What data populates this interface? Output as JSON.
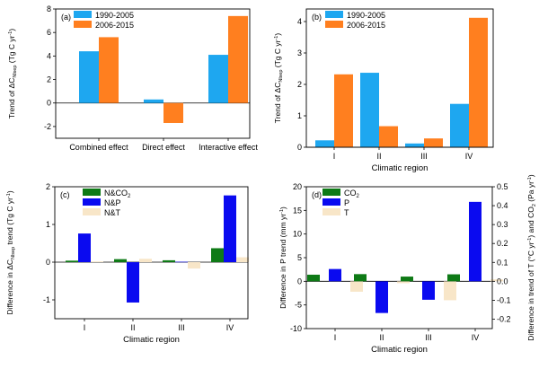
{
  "chart_data": [
    {
      "type": "bar",
      "panel_label": "(a)",
      "ylabel": "Trend of ΔC_Nlsep (Tg C yr⁻¹)",
      "ylabel_parts": {
        "pre": "Trend of ΔC",
        "sub": "Nlsep",
        "post": " (Tg C yr",
        "sup": "-1",
        "end": ")"
      },
      "categories": [
        "Combined effect",
        "Direct effect",
        "Interactive effect"
      ],
      "ylim": [
        -3,
        8
      ],
      "yticks": [
        -2,
        0,
        2,
        4,
        6,
        8
      ],
      "ytick_labels": [
        "-2",
        "0",
        "2",
        "4",
        "6",
        "8"
      ],
      "series": [
        {
          "name": "1990-2005",
          "color": "#1ea7f0",
          "values": [
            4.4,
            0.3,
            4.1
          ]
        },
        {
          "name": "2006-2015",
          "color": "#ff7f1f",
          "values": [
            5.6,
            -1.7,
            7.4
          ]
        }
      ],
      "legend": "top-left"
    },
    {
      "type": "bar",
      "panel_label": "(b)",
      "xlabel": "Climatic region",
      "ylabel": "Trend of ΔC_Nlsep (Tg C yr⁻¹)",
      "ylabel_parts": {
        "pre": "Trend of ΔC",
        "sub": "Nlsep",
        "post": " (Tg C yr",
        "sup": "-1",
        "end": ")"
      },
      "categories": [
        "I",
        "II",
        "III",
        "IV"
      ],
      "ylim": [
        0,
        4.4
      ],
      "yticks": [
        0,
        1,
        2,
        3,
        4
      ],
      "ytick_labels": [
        "0",
        "1",
        "2",
        "3",
        "4"
      ],
      "series": [
        {
          "name": "1990-2005",
          "color": "#1ea7f0",
          "values": [
            0.22,
            2.37,
            0.12,
            1.38
          ]
        },
        {
          "name": "2006-2015",
          "color": "#ff7f1f",
          "values": [
            2.32,
            0.67,
            0.28,
            4.12
          ]
        }
      ],
      "legend": "top-left"
    },
    {
      "type": "bar",
      "panel_label": "(c)",
      "xlabel": "Climatic region",
      "ylabel": "Difference in ΔC_Nlsep trend (Tg C yr⁻¹)",
      "ylabel_parts": {
        "pre": "Difference in ΔC",
        "sub": "Nlsep",
        "post": " trend (Tg C yr",
        "sup": "-1",
        "end": ")"
      },
      "categories": [
        "I",
        "II",
        "III",
        "IV"
      ],
      "ylim": [
        -1.5,
        2
      ],
      "yticks": [
        -1,
        0,
        1,
        2
      ],
      "ytick_labels": [
        "-1",
        "0",
        "1",
        "2"
      ],
      "series": [
        {
          "name": "N&CO2",
          "label_parts": {
            "pre": "N&CO",
            "sub": "2"
          },
          "color": "#0e7a16",
          "values": [
            0.04,
            0.08,
            0.05,
            0.37
          ]
        },
        {
          "name": "N&P",
          "color": "#0a0af0",
          "values": [
            0.76,
            -1.07,
            0.01,
            1.77
          ]
        },
        {
          "name": "N&T",
          "color": "#f8e6c8",
          "values": [
            0.02,
            0.09,
            -0.17,
            0.13
          ]
        }
      ],
      "legend": "top-left"
    },
    {
      "type": "bar",
      "panel_label": "(d)",
      "xlabel": "Climatic region",
      "ylabel": "Difference in P trend (mm yr⁻¹)",
      "ylabel_parts": {
        "pre": "Difference in P trend (mm yr",
        "sup": "-1",
        "end": ")"
      },
      "y2label": "Difference in trend of T (°C yr⁻¹) and CO₂ (Pa yr⁻¹)",
      "y2label_parts": {
        "pre": "Difference in trend of T (°C yr",
        "sup": "-1",
        "mid": ") and CO",
        "sub": "2",
        "post": " (Pa yr",
        "sup2": "-1",
        "end": ")"
      },
      "categories": [
        "I",
        "II",
        "III",
        "IV"
      ],
      "ylim": [
        -10,
        20
      ],
      "yticks": [
        -10,
        -5,
        0,
        5,
        10,
        15,
        20
      ],
      "ytick_labels": [
        "-10",
        "-5",
        "0",
        "5",
        "10",
        "15",
        "20"
      ],
      "y2lim": [
        -0.25,
        0.5
      ],
      "y2ticks": [
        -0.2,
        -0.1,
        0,
        0.1,
        0.2,
        0.3,
        0.4,
        0.5
      ],
      "y2tick_labels": [
        "-0.2",
        "-0.1",
        "0.0",
        "0.1",
        "0.2",
        "0.3",
        "0.4",
        "0.5"
      ],
      "series": [
        {
          "name": "CO2",
          "label_parts": {
            "pre": "CO",
            "sub": "2"
          },
          "axis": "right",
          "color": "#0e7a16",
          "values": [
            0.035,
            0.038,
            0.025,
            0.037
          ]
        },
        {
          "name": "P",
          "axis": "left",
          "color": "#0a0af0",
          "values": [
            2.6,
            -6.7,
            -3.9,
            16.8
          ]
        },
        {
          "name": "T",
          "axis": "right",
          "color": "#f8e6c8",
          "values": [
            -0.055,
            -0.01,
            -0.1,
            0.01
          ]
        }
      ],
      "legend": "top-left"
    }
  ]
}
